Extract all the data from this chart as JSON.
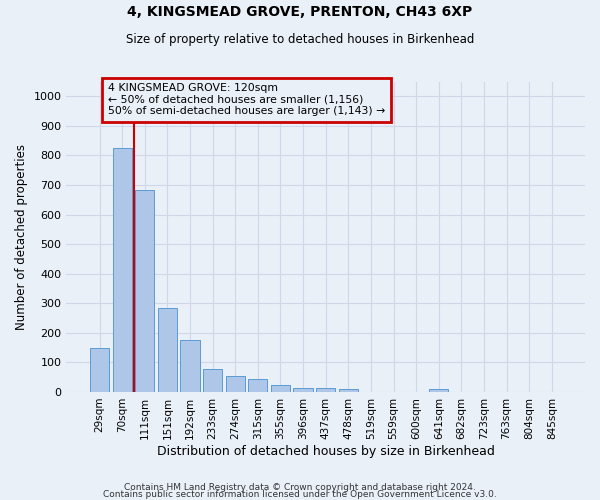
{
  "title1": "4, KINGSMEAD GROVE, PRENTON, CH43 6XP",
  "title2": "Size of property relative to detached houses in Birkenhead",
  "xlabel": "Distribution of detached houses by size in Birkenhead",
  "ylabel": "Number of detached properties",
  "categories": [
    "29sqm",
    "70sqm",
    "111sqm",
    "151sqm",
    "192sqm",
    "233sqm",
    "274sqm",
    "315sqm",
    "355sqm",
    "396sqm",
    "437sqm",
    "478sqm",
    "519sqm",
    "559sqm",
    "600sqm",
    "641sqm",
    "682sqm",
    "723sqm",
    "763sqm",
    "804sqm",
    "845sqm"
  ],
  "values": [
    150,
    825,
    682,
    283,
    175,
    78,
    53,
    45,
    25,
    12,
    12,
    10,
    0,
    0,
    0,
    10,
    0,
    0,
    0,
    0,
    0
  ],
  "bar_color": "#aec6e8",
  "bar_edgecolor": "#5b9bd5",
  "vline_color": "#cc0000",
  "vline_xindex": 1.5,
  "annotation_text": "4 KINGSMEAD GROVE: 120sqm\n← 50% of detached houses are smaller (1,156)\n50% of semi-detached houses are larger (1,143) →",
  "annotation_box_edgecolor": "#cc0000",
  "ylim": [
    0,
    1050
  ],
  "yticks": [
    0,
    100,
    200,
    300,
    400,
    500,
    600,
    700,
    800,
    900,
    1000
  ],
  "grid_color": "#d0d8e8",
  "bg_color": "#eaf0f8",
  "footer1": "Contains HM Land Registry data © Crown copyright and database right 2024.",
  "footer2": "Contains public sector information licensed under the Open Government Licence v3.0."
}
